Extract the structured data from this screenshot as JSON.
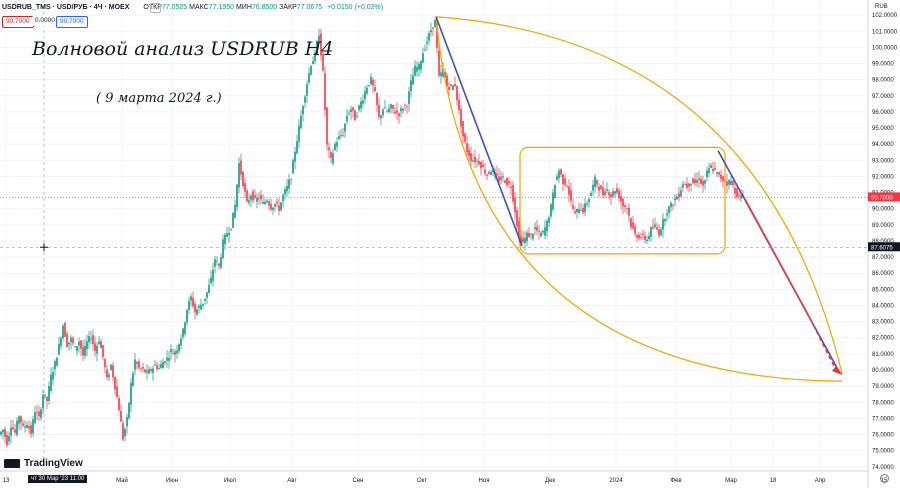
{
  "header": {
    "symbol": "USDRUB_TMS · USD/РУБ · 4Ч · MOEX",
    "open_label": "ОТКР",
    "open": "77.0525",
    "high_label": "МАКС",
    "high": "77.1950",
    "low_label": "МИН",
    "low": "76.8500",
    "close_label": "ЗАКР",
    "close": "77.0675",
    "change": "+0.0150 (+0.02%)",
    "sell": "90.7000",
    "spread": "0.0000",
    "buy": "90.7000"
  },
  "annotations": {
    "title": "Волновой анализ USDRUB H4",
    "date": "( 9 марта 2024 г.)",
    "crosshair_time": "чт 30 Мар '23   11:00"
  },
  "logo_text": "TradingView",
  "currency_label": "RUB",
  "colors": {
    "up": "#089981",
    "down": "#f23645",
    "wave": "#3f51b5",
    "arc": "#f0a500",
    "forecast": "#e53935",
    "grid": "#f0f3fa"
  },
  "chart_data": {
    "type": "candlestick",
    "x_axis": {
      "labels": [
        "13",
        "Май",
        "Июн",
        "Июл",
        "Авг",
        "Сен",
        "Окт",
        "Ноя",
        "Дек",
        "2024",
        "Фев",
        "Мар",
        "18",
        "Апр",
        "15"
      ]
    },
    "y_axis": {
      "range": [
        73.8,
        103.0
      ],
      "ticks": [
        "74.0000",
        "75.0000",
        "76.0000",
        "77.0000",
        "78.0000",
        "79.0000",
        "80.0000",
        "81.0000",
        "82.0000",
        "83.0000",
        "84.0000",
        "85.0000",
        "86.0000",
        "87.0000",
        "88.0000",
        "89.0000",
        "90.0000",
        "91.0000",
        "92.0000",
        "93.0000",
        "94.0000",
        "95.0000",
        "96.0000",
        "97.0000",
        "98.0000",
        "99.0000",
        "100.0000",
        "101.0000",
        "102.0000"
      ],
      "current_price": "90.7000",
      "crosshair_price": "87.6075"
    },
    "price_path": [
      [
        0,
        76.0
      ],
      [
        4,
        76.3
      ],
      [
        8,
        75.5
      ],
      [
        12,
        76.6
      ],
      [
        16,
        76.1
      ],
      [
        20,
        77.2
      ],
      [
        24,
        76.4
      ],
      [
        28,
        76.7
      ],
      [
        32,
        76.1
      ],
      [
        36,
        77.5
      ],
      [
        40,
        77.0
      ],
      [
        44,
        78.5
      ],
      [
        48,
        78.1
      ],
      [
        52,
        79.6
      ],
      [
        56,
        80.4
      ],
      [
        60,
        81.5
      ],
      [
        64,
        82.8
      ],
      [
        68,
        81.6
      ],
      [
        72,
        81.9
      ],
      [
        76,
        81.3
      ],
      [
        80,
        81.8
      ],
      [
        84,
        80.9
      ],
      [
        88,
        81.7
      ],
      [
        92,
        82.1
      ],
      [
        96,
        81.2
      ],
      [
        100,
        81.9
      ],
      [
        104,
        80.8
      ],
      [
        108,
        79.4
      ],
      [
        112,
        80.3
      ],
      [
        116,
        79.0
      ],
      [
        120,
        77.6
      ],
      [
        124,
        75.8
      ],
      [
        128,
        76.9
      ],
      [
        132,
        79.1
      ],
      [
        136,
        80.6
      ],
      [
        140,
        80.1
      ],
      [
        144,
        80.0
      ],
      [
        148,
        79.8
      ],
      [
        152,
        80.0
      ],
      [
        156,
        80.3
      ],
      [
        160,
        80.1
      ],
      [
        164,
        80.5
      ],
      [
        168,
        80.7
      ],
      [
        172,
        81.2
      ],
      [
        176,
        81.0
      ],
      [
        180,
        81.7
      ],
      [
        184,
        82.4
      ],
      [
        188,
        83.8
      ],
      [
        192,
        84.5
      ],
      [
        196,
        83.6
      ],
      [
        200,
        83.9
      ],
      [
        204,
        84.2
      ],
      [
        208,
        84.8
      ],
      [
        212,
        85.6
      ],
      [
        216,
        86.9
      ],
      [
        220,
        86.4
      ],
      [
        224,
        87.9
      ],
      [
        228,
        88.5
      ],
      [
        232,
        88.9
      ],
      [
        236,
        90.2
      ],
      [
        240,
        92.8
      ],
      [
        244,
        91.6
      ],
      [
        248,
        90.3
      ],
      [
        252,
        90.9
      ],
      [
        256,
        90.5
      ],
      [
        260,
        90.7
      ],
      [
        264,
        90.3
      ],
      [
        268,
        90.6
      ],
      [
        272,
        90.1
      ],
      [
        276,
        90.3
      ],
      [
        280,
        90.0
      ],
      [
        284,
        90.8
      ],
      [
        288,
        91.3
      ],
      [
        292,
        92.0
      ],
      [
        296,
        93.6
      ],
      [
        300,
        95.0
      ],
      [
        304,
        96.5
      ],
      [
        308,
        97.8
      ],
      [
        312,
        99.0
      ],
      [
        316,
        99.5
      ],
      [
        320,
        100.9
      ],
      [
        324,
        98.4
      ],
      [
        328,
        93.9
      ],
      [
        332,
        93.0
      ],
      [
        336,
        94.0
      ],
      [
        340,
        94.4
      ],
      [
        344,
        94.7
      ],
      [
        348,
        95.8
      ],
      [
        352,
        96.2
      ],
      [
        356,
        95.6
      ],
      [
        360,
        96.3
      ],
      [
        364,
        96.9
      ],
      [
        368,
        97.6
      ],
      [
        372,
        98.0
      ],
      [
        376,
        97.1
      ],
      [
        380,
        95.6
      ],
      [
        384,
        96.2
      ],
      [
        388,
        96.0
      ],
      [
        392,
        96.3
      ],
      [
        396,
        96.0
      ],
      [
        400,
        95.9
      ],
      [
        404,
        96.3
      ],
      [
        408,
        96.5
      ],
      [
        412,
        97.8
      ],
      [
        416,
        98.7
      ],
      [
        420,
        98.8
      ],
      [
        424,
        99.7
      ],
      [
        428,
        100.4
      ],
      [
        432,
        101.1
      ],
      [
        436,
        101.6
      ],
      [
        440,
        98.1
      ],
      [
        444,
        98.6
      ],
      [
        448,
        97.6
      ],
      [
        452,
        97.5
      ],
      [
        456,
        97.7
      ],
      [
        460,
        96.0
      ],
      [
        464,
        94.5
      ],
      [
        468,
        93.6
      ],
      [
        472,
        93.1
      ],
      [
        476,
        93.0
      ],
      [
        480,
        92.9
      ],
      [
        484,
        92.5
      ],
      [
        488,
        92.1
      ],
      [
        492,
        92.4
      ],
      [
        496,
        92.1
      ],
      [
        500,
        91.8
      ],
      [
        504,
        91.9
      ],
      [
        508,
        91.6
      ],
      [
        512,
        91.4
      ],
      [
        516,
        89.9
      ],
      [
        520,
        88.2
      ],
      [
        524,
        87.9
      ],
      [
        528,
        88.4
      ],
      [
        532,
        88.3
      ],
      [
        536,
        88.8
      ],
      [
        540,
        88.4
      ],
      [
        544,
        88.5
      ],
      [
        548,
        89.1
      ],
      [
        552,
        90.1
      ],
      [
        556,
        91.6
      ],
      [
        560,
        92.4
      ],
      [
        564,
        91.7
      ],
      [
        568,
        91.5
      ],
      [
        572,
        90.4
      ],
      [
        576,
        89.6
      ],
      [
        580,
        90.1
      ],
      [
        584,
        89.9
      ],
      [
        588,
        90.4
      ],
      [
        592,
        91.0
      ],
      [
        596,
        91.8
      ],
      [
        600,
        91.3
      ],
      [
        604,
        90.9
      ],
      [
        608,
        91.2
      ],
      [
        612,
        90.8
      ],
      [
        616,
        91.2
      ],
      [
        620,
        90.8
      ],
      [
        624,
        90.2
      ],
      [
        628,
        90.1
      ],
      [
        632,
        89.0
      ],
      [
        636,
        88.4
      ],
      [
        640,
        88.3
      ],
      [
        644,
        88.2
      ],
      [
        648,
        88.1
      ],
      [
        652,
        88.7
      ],
      [
        656,
        88.9
      ],
      [
        660,
        88.5
      ],
      [
        664,
        89.2
      ],
      [
        668,
        89.9
      ],
      [
        672,
        90.2
      ],
      [
        676,
        90.6
      ],
      [
        680,
        90.9
      ],
      [
        684,
        91.6
      ],
      [
        688,
        91.4
      ],
      [
        692,
        91.7
      ],
      [
        696,
        91.6
      ],
      [
        700,
        91.9
      ],
      [
        704,
        91.4
      ],
      [
        708,
        92.2
      ],
      [
        712,
        92.6
      ],
      [
        716,
        92.3
      ],
      [
        720,
        92.0
      ],
      [
        724,
        91.8
      ],
      [
        728,
        91.6
      ],
      [
        732,
        91.7
      ],
      [
        736,
        91.1
      ],
      [
        740,
        90.7
      ],
      [
        744,
        90.7
      ]
    ],
    "waves": [
      {
        "type": "impulse_line",
        "from": [
          436,
          101.9
        ],
        "to": [
          522,
          87.7
        ]
      },
      {
        "type": "impulse_line",
        "from": [
          718,
          93.6
        ],
        "to": [
          840,
          79.8
        ]
      },
      {
        "type": "forecast_line",
        "from": [
          744,
          90.7
        ],
        "to": [
          810,
          83.2
        ]
      },
      {
        "type": "forecast_dash",
        "from": [
          810,
          83.2
        ],
        "to": [
          836,
          80.0
        ]
      }
    ],
    "consolidation_box": {
      "x0": 520,
      "x1": 725,
      "y_low": 87.2,
      "y_high": 93.8
    },
    "title": "Волновой анализ USDRUB H4",
    "grid": true
  }
}
